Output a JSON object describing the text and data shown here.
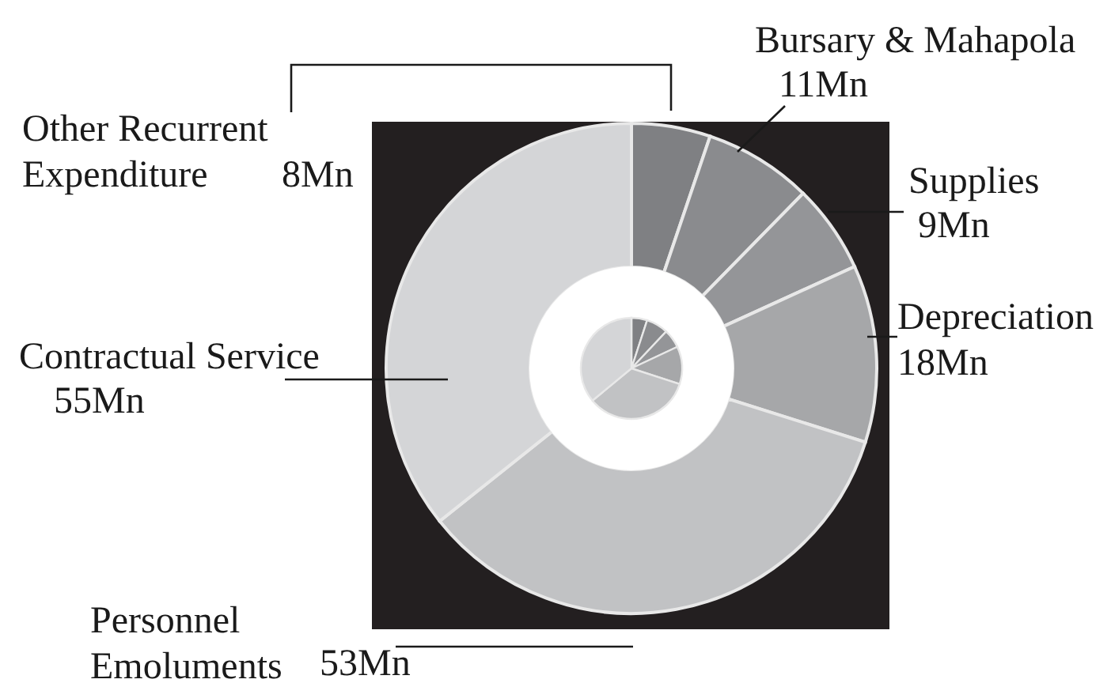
{
  "chart_data": {
    "type": "donut",
    "categories": [
      "Other Recurrent Expenditure",
      "Bursary & Mahapola",
      "Supplies",
      "Depreciation",
      "Personnel Emoluments",
      "Contractual Service"
    ],
    "series": [
      {
        "values": [
          8,
          11,
          9,
          18,
          53,
          55
        ],
        "value_labels": [
          "8Mn",
          "11Mn",
          "9Mn",
          "18Mn",
          "53Mn",
          "55Mn"
        ]
      },
      {
        "values": [
          5,
          7,
          6,
          12,
          34,
          36
        ]
      }
    ],
    "colors": [
      "#7f8083",
      "#8a8b8e",
      "#949598",
      "#a6a7a9",
      "#c1c2c4",
      "#d4d5d7"
    ]
  }
}
